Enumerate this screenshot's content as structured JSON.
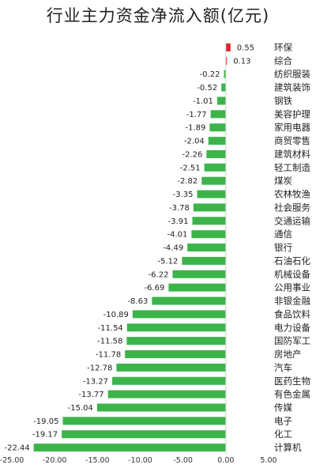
{
  "chart_data": {
    "type": "bar",
    "orientation": "horizontal",
    "title": "行业主力资金净流入额(亿元)",
    "categories": [
      "环保",
      "综合",
      "纺织服装",
      "建筑装饰",
      "钢铁",
      "美容护理",
      "家用电器",
      "商贸零售",
      "建筑材料",
      "轻工制造",
      "煤炭",
      "农林牧渔",
      "社会服务",
      "交通运输",
      "通信",
      "银行",
      "石油石化",
      "机械设备",
      "公用事业",
      "非银金融",
      "食品饮料",
      "电力设备",
      "国防军工",
      "房地产",
      "汽车",
      "医药生物",
      "有色金属",
      "传媒",
      "电子",
      "化工",
      "计算机"
    ],
    "values": [
      0.55,
      0.13,
      -0.22,
      -0.52,
      -1.01,
      -1.77,
      -1.89,
      -2.04,
      -2.26,
      -2.51,
      -2.82,
      -3.35,
      -3.78,
      -3.91,
      -4.01,
      -4.49,
      -5.12,
      -6.22,
      -6.69,
      -8.63,
      -10.89,
      -11.54,
      -11.58,
      -11.78,
      -12.78,
      -13.27,
      -13.77,
      -15.04,
      -19.05,
      -19.17,
      -22.44
    ],
    "value_labels": [
      "0.55",
      "0.13",
      "-0.22",
      "-0.52",
      "-1.01",
      "-1.77",
      "-1.89",
      "-2.04",
      "-2.26",
      "-2.51",
      "-2.82",
      "-3.35",
      "-3.78",
      "-3.91",
      "-4.01",
      "-4.49",
      "-5.12",
      "-6.22",
      "-6.69",
      "-8.63",
      "-10.89",
      "-11.54",
      "-11.58",
      "-11.78",
      "-12.78",
      "-13.27",
      "-13.77",
      "-15.04",
      "-19.05",
      "-19.17",
      "-22.44"
    ],
    "xlim": [
      -25,
      5
    ],
    "xticks": [
      -25,
      -20,
      -15,
      -10,
      -5,
      0,
      5
    ],
    "xtick_labels": [
      "-25.00",
      "-20.00",
      "-15.00",
      "-10.00",
      "-5.00",
      "0.00",
      "5.00"
    ],
    "grid": false,
    "colors": {
      "positive": "#e8232a",
      "negative": "#3cb44a",
      "axis": "#d0d0d0"
    }
  }
}
